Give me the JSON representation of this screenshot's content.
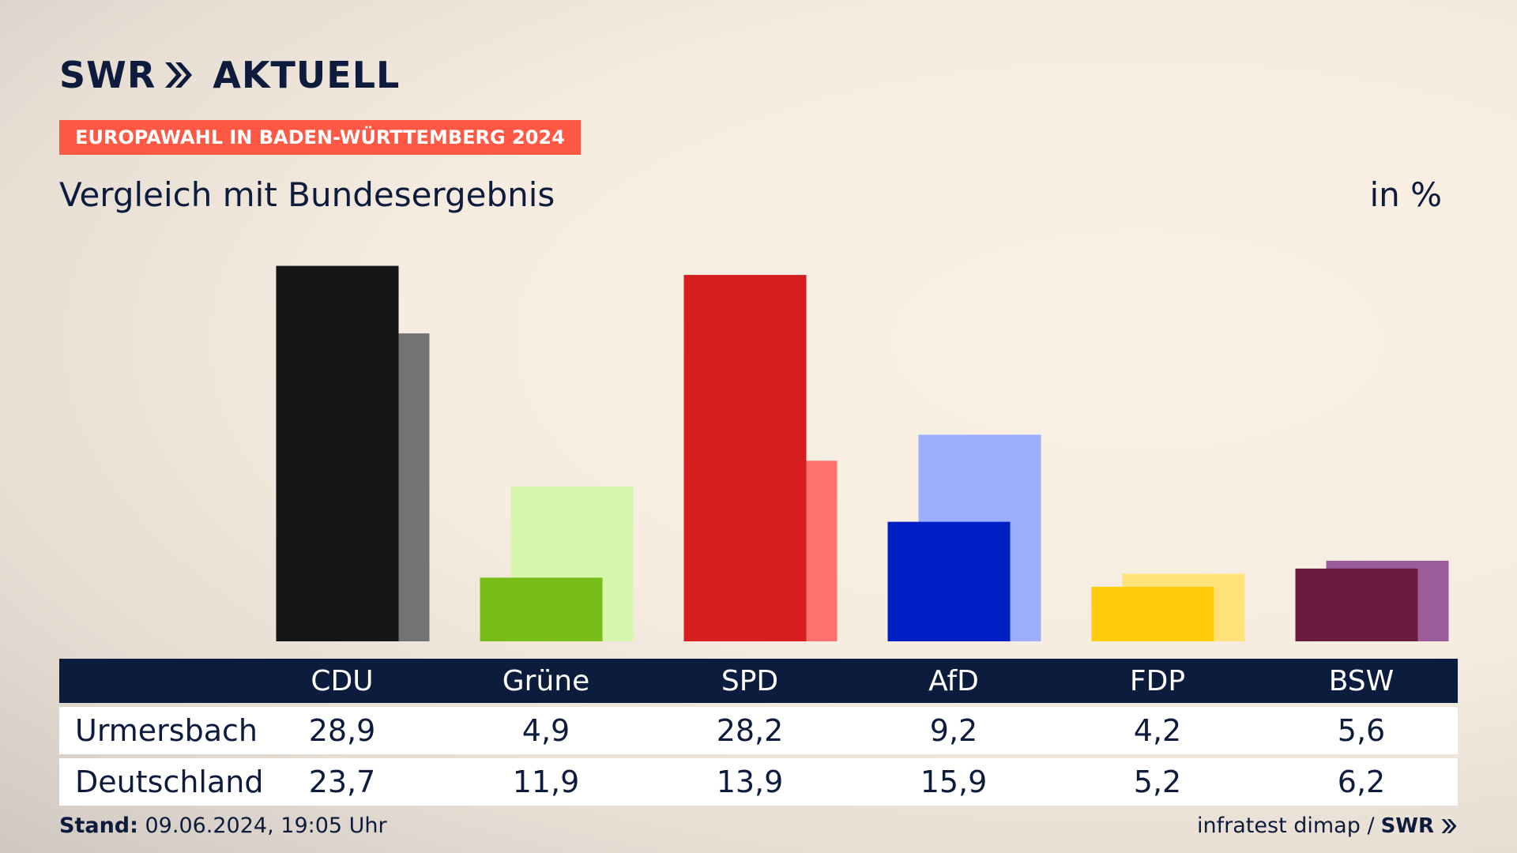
{
  "header": {
    "brand_swr": "SWR",
    "brand_aktuell": "AKTUELL",
    "tag": "EUROPAWAHL IN BADEN-WÜRTTEMBERG 2024",
    "subtitle": "Vergleich mit Bundesergebnis",
    "unit": "in %"
  },
  "colors": {
    "navy": "#0c1c3c",
    "tag_bg": "#ff5845"
  },
  "chart_data": {
    "type": "bar",
    "title": "Vergleich mit Bundesergebnis",
    "ylabel": "in %",
    "categories": [
      "CDU",
      "Grüne",
      "SPD",
      "AfD",
      "FDP",
      "BSW"
    ],
    "series": [
      {
        "name": "Urmersbach",
        "values": [
          28.9,
          4.9,
          28.2,
          9.2,
          4.2,
          5.6
        ],
        "display": [
          "28,9",
          "4,9",
          "28,2",
          "9,2",
          "4,2",
          "5,6"
        ],
        "colors": [
          "#151515",
          "#78be1a",
          "#d61e1e",
          "#001fc4",
          "#ffcc0a",
          "#6b1b3d"
        ]
      },
      {
        "name": "Deutschland",
        "values": [
          23.7,
          11.9,
          13.9,
          15.9,
          5.2,
          6.2
        ],
        "display": [
          "23,7",
          "11,9",
          "13,9",
          "15,9",
          "5,2",
          "6,2"
        ],
        "colors": [
          "#737373",
          "#d6f5ad",
          "#ff726e",
          "#9daeff",
          "#ffe37a",
          "#9b5c99"
        ]
      }
    ]
  },
  "footer": {
    "stand_label": "Stand:",
    "stand_value": " 09.06.2024, 19:05 Uhr",
    "source": "infratest dimap /",
    "source_brand": "SWR"
  }
}
